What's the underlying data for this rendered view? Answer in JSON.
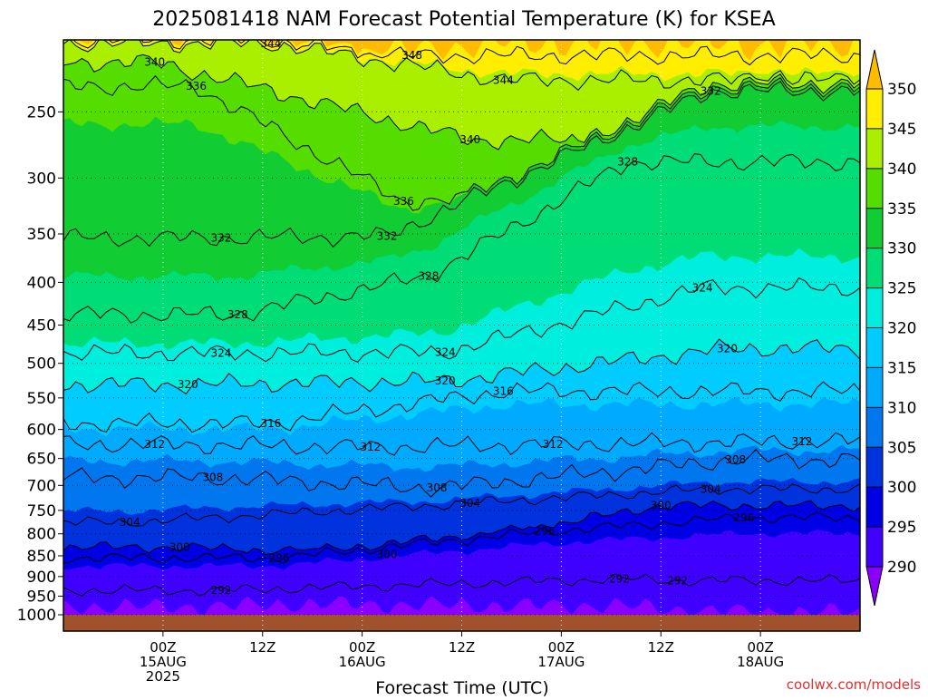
{
  "chart_data": {
    "type": "heatmap",
    "title": "2025081418 NAM Forecast Potential Temperature (K) for KSEA",
    "xlabel": "Forecast Time (UTC)",
    "ylabel": "",
    "credit": "coolwx.com/models",
    "y_axis": {
      "scale": "log-pressure",
      "ticks": [
        250,
        300,
        350,
        400,
        450,
        500,
        550,
        600,
        650,
        700,
        750,
        800,
        850,
        900,
        950,
        1000
      ],
      "range": [
        1000,
        205
      ]
    },
    "x_axis": {
      "range_hours": [
        -12,
        84
      ],
      "ticks": [
        {
          "hour": 0,
          "lines": [
            "00Z",
            "15AUG",
            "2025"
          ]
        },
        {
          "hour": 12,
          "lines": [
            "12Z"
          ]
        },
        {
          "hour": 24,
          "lines": [
            "00Z",
            "16AUG"
          ]
        },
        {
          "hour": 36,
          "lines": [
            "12Z"
          ]
        },
        {
          "hour": 48,
          "lines": [
            "00Z",
            "17AUG"
          ]
        },
        {
          "hour": 60,
          "lines": [
            "12Z"
          ]
        },
        {
          "hour": 72,
          "lines": [
            "00Z",
            "18AUG"
          ]
        }
      ]
    },
    "colorbar": {
      "labels": [
        290,
        295,
        300,
        305,
        310,
        315,
        320,
        325,
        330,
        335,
        340,
        345,
        350
      ],
      "colors": [
        "#8a00ff",
        "#3f00ff",
        "#0000e6",
        "#0033dd",
        "#0077ee",
        "#00aaff",
        "#00ccff",
        "#00eedd",
        "#00dd77",
        "#11cc33",
        "#55dd00",
        "#aaee00",
        "#ffee00",
        "#ffbb00"
      ]
    },
    "contour_interval_K": 4,
    "contours": [
      {
        "level": 292,
        "labels": [
          {
            "hour": 7,
            "p": 935
          },
          {
            "hour": 55,
            "p": 906
          },
          {
            "hour": 62,
            "p": 910
          }
        ]
      },
      {
        "level": 296,
        "labels": [
          {
            "hour": 14,
            "p": 855
          },
          {
            "hour": 46,
            "p": 795
          },
          {
            "hour": 70,
            "p": 765
          }
        ]
      },
      {
        "level": 300,
        "labels": [
          {
            "hour": 2,
            "p": 830
          },
          {
            "hour": 27,
            "p": 847
          },
          {
            "hour": 60,
            "p": 740
          }
        ]
      },
      {
        "level": 304,
        "labels": [
          {
            "hour": -4,
            "p": 775
          },
          {
            "hour": 37,
            "p": 735
          },
          {
            "hour": 66,
            "p": 707
          }
        ]
      },
      {
        "level": 308,
        "labels": [
          {
            "hour": 6,
            "p": 685
          },
          {
            "hour": 33,
            "p": 705
          },
          {
            "hour": 69,
            "p": 652
          }
        ]
      },
      {
        "level": 312,
        "labels": [
          {
            "hour": -1,
            "p": 625
          },
          {
            "hour": 25,
            "p": 630
          },
          {
            "hour": 47,
            "p": 625
          },
          {
            "hour": 77,
            "p": 620
          }
        ]
      },
      {
        "level": 316,
        "labels": [
          {
            "hour": 13,
            "p": 590
          },
          {
            "hour": 41,
            "p": 540
          }
        ]
      },
      {
        "level": 320,
        "labels": [
          {
            "hour": 3,
            "p": 530
          },
          {
            "hour": 34,
            "p": 525
          },
          {
            "hour": 68,
            "p": 480
          }
        ]
      },
      {
        "level": 324,
        "labels": [
          {
            "hour": 7,
            "p": 486
          },
          {
            "hour": 34,
            "p": 485
          },
          {
            "hour": 65,
            "p": 406
          }
        ]
      },
      {
        "level": 328,
        "labels": [
          {
            "hour": 9,
            "p": 437
          },
          {
            "hour": 32,
            "p": 393
          },
          {
            "hour": 56,
            "p": 287
          }
        ]
      },
      {
        "level": 332,
        "labels": [
          {
            "hour": 7,
            "p": 354
          },
          {
            "hour": 27,
            "p": 352
          },
          {
            "hour": 66,
            "p": 236
          }
        ]
      },
      {
        "level": 336,
        "labels": [
          {
            "hour": 4,
            "p": 233
          },
          {
            "hour": 29,
            "p": 320
          }
        ]
      },
      {
        "level": 340,
        "labels": [
          {
            "hour": -1,
            "p": 218
          },
          {
            "hour": 37,
            "p": 270
          }
        ]
      },
      {
        "level": 344,
        "labels": [
          {
            "hour": 13,
            "p": 207
          },
          {
            "hour": 41,
            "p": 229
          }
        ]
      },
      {
        "level": 348,
        "labels": [
          {
            "hour": 30,
            "p": 214
          }
        ]
      }
    ],
    "grid": true,
    "legend": "colorbar-right"
  }
}
